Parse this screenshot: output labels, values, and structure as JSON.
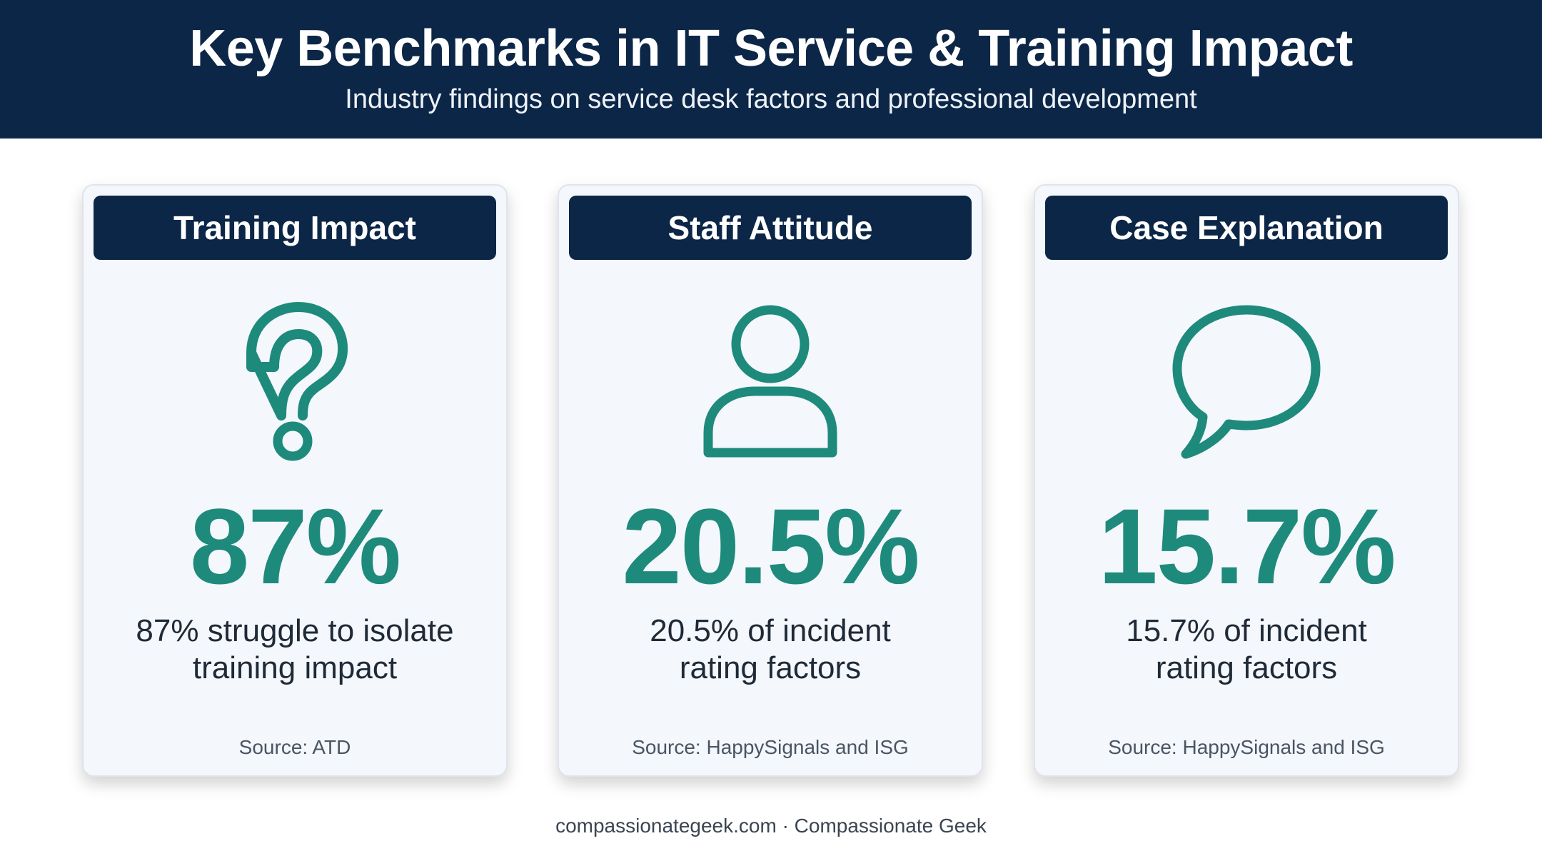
{
  "header": {
    "title": "Key Benchmarks in IT Service & Training Impact",
    "subtitle": "Industry findings on service desk factors and professional development"
  },
  "colors": {
    "navy": "#0c2647",
    "teal": "#1e8a7c",
    "card_bg": "#f4f7fb"
  },
  "cards": [
    {
      "title": "Training Impact",
      "icon": "question-mark-icon",
      "stat": "87%",
      "desc_line1": "87% struggle to isolate",
      "desc_line2": "training impact",
      "source": "Source: ATD"
    },
    {
      "title": "Staff Attitude",
      "icon": "person-icon",
      "stat": "20.5%",
      "desc_line1": "20.5% of incident",
      "desc_line2": "rating factors",
      "source": "Source: HappySignals and ISG"
    },
    {
      "title": "Case Explanation",
      "icon": "speech-bubble-icon",
      "stat": "15.7%",
      "desc_line1": "15.7% of incident",
      "desc_line2": "rating factors",
      "source": "Source: HappySignals and ISG"
    }
  ],
  "footer": {
    "text": "compassionategeek.com · Compassionate Geek"
  }
}
